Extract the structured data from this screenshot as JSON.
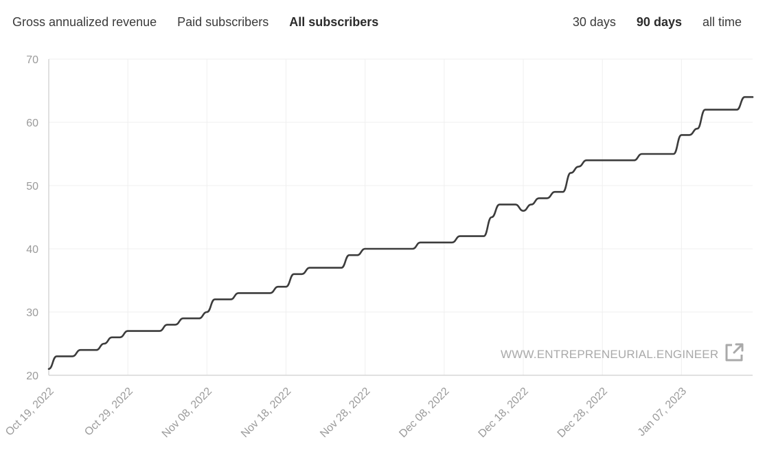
{
  "metric_tabs": [
    {
      "label": "Gross annualized revenue",
      "active": false
    },
    {
      "label": "Paid subscribers",
      "active": false
    },
    {
      "label": "All subscribers",
      "active": true
    }
  ],
  "range_tabs": [
    {
      "label": "30 days",
      "active": false
    },
    {
      "label": "90 days",
      "active": true
    },
    {
      "label": "all time",
      "active": false
    }
  ],
  "watermark": {
    "text": "WWW.ENTREPRENEURIAL.ENGINEER",
    "icon": "external-link-icon"
  },
  "colors": {
    "line": "#3c3c3c",
    "grid": "#efefef",
    "axis": "#d6d6d6",
    "tick_text": "#9a9a9a"
  },
  "chart_data": {
    "type": "line",
    "title": "",
    "xlabel": "",
    "ylabel": "",
    "ylim": [
      20,
      70
    ],
    "yticks": [
      20,
      30,
      40,
      50,
      60,
      70
    ],
    "xlim": [
      "2022-10-19",
      "2023-01-16"
    ],
    "xtick_labels": [
      "Oct 19, 2022",
      "Oct 29, 2022",
      "Nov 08, 2022",
      "Nov 18, 2022",
      "Nov 28, 2022",
      "Dec 08, 2022",
      "Dec 18, 2022",
      "Dec 28, 2022",
      "Jan 07, 2023"
    ],
    "grid": true,
    "series": [
      {
        "name": "",
        "x": [
          "2022-10-19",
          "2022-10-20",
          "2022-10-21",
          "2022-10-22",
          "2022-10-23",
          "2022-10-24",
          "2022-10-25",
          "2022-10-26",
          "2022-10-27",
          "2022-10-28",
          "2022-10-29",
          "2022-10-30",
          "2022-10-31",
          "2022-11-01",
          "2022-11-02",
          "2022-11-03",
          "2022-11-04",
          "2022-11-05",
          "2022-11-06",
          "2022-11-07",
          "2022-11-08",
          "2022-11-09",
          "2022-11-10",
          "2022-11-11",
          "2022-11-12",
          "2022-11-13",
          "2022-11-14",
          "2022-11-15",
          "2022-11-16",
          "2022-11-17",
          "2022-11-18",
          "2022-11-19",
          "2022-11-20",
          "2022-11-21",
          "2022-11-22",
          "2022-11-23",
          "2022-11-24",
          "2022-11-25",
          "2022-11-26",
          "2022-11-27",
          "2022-11-28",
          "2022-11-29",
          "2022-11-30",
          "2022-12-01",
          "2022-12-02",
          "2022-12-03",
          "2022-12-04",
          "2022-12-05",
          "2022-12-06",
          "2022-12-07",
          "2022-12-08",
          "2022-12-09",
          "2022-12-10",
          "2022-12-11",
          "2022-12-12",
          "2022-12-13",
          "2022-12-14",
          "2022-12-15",
          "2022-12-16",
          "2022-12-17",
          "2022-12-18",
          "2022-12-19",
          "2022-12-20",
          "2022-12-21",
          "2022-12-22",
          "2022-12-23",
          "2022-12-24",
          "2022-12-25",
          "2022-12-26",
          "2022-12-27",
          "2022-12-28",
          "2022-12-29",
          "2022-12-30",
          "2022-12-31",
          "2023-01-01",
          "2023-01-02",
          "2023-01-03",
          "2023-01-04",
          "2023-01-05",
          "2023-01-06",
          "2023-01-07",
          "2023-01-08",
          "2023-01-09",
          "2023-01-10",
          "2023-01-11",
          "2023-01-12",
          "2023-01-13",
          "2023-01-14",
          "2023-01-15",
          "2023-01-16"
        ],
        "values": [
          21,
          23,
          23,
          23,
          24,
          24,
          24,
          25,
          26,
          26,
          27,
          27,
          27,
          27,
          27,
          28,
          28,
          29,
          29,
          29,
          30,
          32,
          32,
          32,
          33,
          33,
          33,
          33,
          33,
          34,
          34,
          36,
          36,
          37,
          37,
          37,
          37,
          37,
          39,
          39,
          40,
          40,
          40,
          40,
          40,
          40,
          40,
          41,
          41,
          41,
          41,
          41,
          42,
          42,
          42,
          42,
          45,
          47,
          47,
          47,
          46,
          47,
          48,
          48,
          49,
          49,
          52,
          53,
          54,
          54,
          54,
          54,
          54,
          54,
          54,
          55,
          55,
          55,
          55,
          55,
          58,
          58,
          59,
          62,
          62,
          62,
          62,
          62,
          64,
          64
        ]
      }
    ]
  }
}
